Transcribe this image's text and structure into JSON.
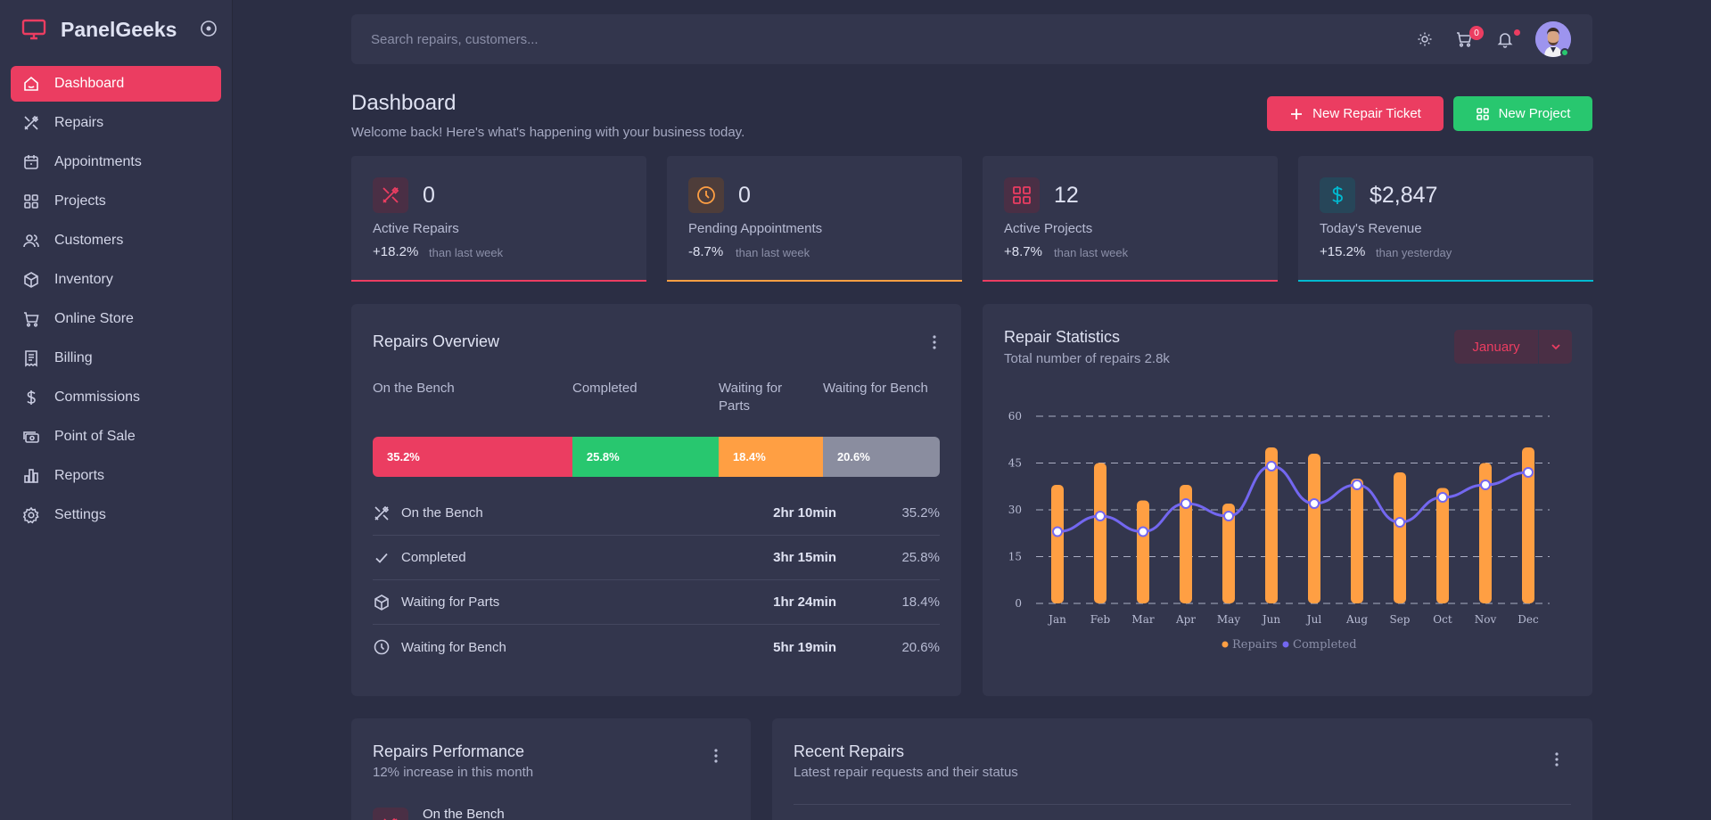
{
  "brand": {
    "name": "PanelGeeks"
  },
  "sidebar": {
    "items": [
      {
        "label": "Dashboard",
        "icon": "home-icon",
        "active": true
      },
      {
        "label": "Repairs",
        "icon": "tools-icon"
      },
      {
        "label": "Appointments",
        "icon": "calendar-icon"
      },
      {
        "label": "Projects",
        "icon": "grid-icon"
      },
      {
        "label": "Customers",
        "icon": "users-icon"
      },
      {
        "label": "Inventory",
        "icon": "box-icon"
      },
      {
        "label": "Online Store",
        "icon": "cart-icon"
      },
      {
        "label": "Billing",
        "icon": "receipt-icon"
      },
      {
        "label": "Commissions",
        "icon": "dollar-icon"
      },
      {
        "label": "Point of Sale",
        "icon": "cash-icon"
      },
      {
        "label": "Reports",
        "icon": "bar-chart-icon"
      },
      {
        "label": "Settings",
        "icon": "gear-icon"
      }
    ]
  },
  "header": {
    "search_placeholder": "Search repairs, customers...",
    "cart_count": "0"
  },
  "page": {
    "title": "Dashboard",
    "subtitle": "Welcome back! Here's what's happening with your business today.",
    "new_repair_label": "New Repair Ticket",
    "new_project_label": "New Project"
  },
  "stats": [
    {
      "value": "0",
      "label": "Active Repairs",
      "change": "+18.2%",
      "compare": "than last week",
      "color": "#eb3d61"
    },
    {
      "value": "0",
      "label": "Pending Appointments",
      "change": "-8.7%",
      "compare": "than last week",
      "color": "#ff9f43"
    },
    {
      "value": "12",
      "label": "Active Projects",
      "change": "+8.7%",
      "compare": "than last week",
      "color": "#eb3d61"
    },
    {
      "value": "$2,847",
      "label": "Today's Revenue",
      "change": "+15.2%",
      "compare": "than yesterday",
      "color": "#00bad1"
    }
  ],
  "repairs_overview": {
    "title": "Repairs Overview",
    "columns": [
      "On the Bench",
      "Completed",
      "Waiting for Parts",
      "Waiting for Bench"
    ],
    "segments": [
      {
        "label": "35.2%",
        "value": 35.2,
        "color": "#eb3d61"
      },
      {
        "label": "25.8%",
        "value": 25.8,
        "color": "#28c76f"
      },
      {
        "label": "18.4%",
        "value": 18.4,
        "color": "#ff9f43"
      },
      {
        "label": "20.6%",
        "value": 20.6,
        "color": "#8a8d9f"
      }
    ],
    "rows": [
      {
        "label": "On the Bench",
        "time": "2hr 10min",
        "pct": "35.2%",
        "icon": "tools-icon"
      },
      {
        "label": "Completed",
        "time": "3hr 15min",
        "pct": "25.8%",
        "icon": "check-icon"
      },
      {
        "label": "Waiting for Parts",
        "time": "1hr 24min",
        "pct": "18.4%",
        "icon": "box-icon"
      },
      {
        "label": "Waiting for Bench",
        "time": "5hr 19min",
        "pct": "20.6%",
        "icon": "clock-icon"
      }
    ]
  },
  "repair_statistics": {
    "title": "Repair Statistics",
    "subtitle": "Total number of repairs 2.8k",
    "month": "January"
  },
  "chart_data": {
    "type": "bar",
    "categories": [
      "Jan",
      "Feb",
      "Mar",
      "Apr",
      "May",
      "Jun",
      "Jul",
      "Aug",
      "Sep",
      "Oct",
      "Nov",
      "Dec"
    ],
    "series": [
      {
        "name": "Repairs",
        "type": "bar",
        "color": "#ff9f43",
        "values": [
          38,
          45,
          33,
          38,
          32,
          50,
          48,
          40,
          42,
          37,
          45,
          50
        ]
      },
      {
        "name": "Completed",
        "type": "line",
        "color": "#7367f0",
        "values": [
          23,
          28,
          23,
          32,
          28,
          44,
          32,
          38,
          26,
          34,
          38,
          42
        ]
      }
    ],
    "yticks": [
      0,
      15,
      30,
      45,
      60
    ],
    "ylim": [
      0,
      60
    ],
    "grid": true,
    "legend": "bottom"
  },
  "repairs_performance": {
    "title": "Repairs Performance",
    "subtitle": "12% increase in this month",
    "first_item": "On the Bench"
  },
  "recent_repairs": {
    "title": "Recent Repairs",
    "subtitle": "Latest repair requests and their status"
  }
}
